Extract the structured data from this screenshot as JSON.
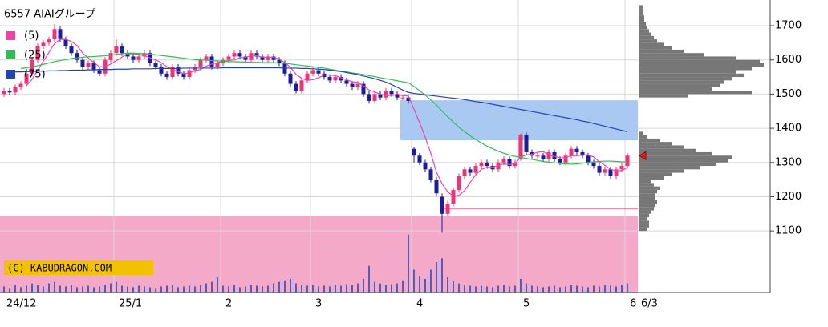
{
  "chart_data": {
    "type": "candlestick",
    "title": "6557 AIAIグループ",
    "watermark": "(C) KABUDRAGON.COM",
    "latest_date": "6/3",
    "categories": [
      "24/12",
      null,
      null,
      null,
      null,
      null,
      null,
      null,
      null,
      null,
      null,
      null,
      null,
      null,
      null,
      null,
      null,
      null,
      null,
      null,
      "25/1",
      null,
      null,
      null,
      null,
      null,
      null,
      null,
      null,
      null,
      null,
      null,
      null,
      null,
      null,
      null,
      null,
      null,
      null,
      "2",
      null,
      null,
      null,
      null,
      null,
      null,
      null,
      null,
      null,
      null,
      null,
      null,
      null,
      null,
      null,
      "3",
      null,
      null,
      null,
      null,
      null,
      null,
      null,
      null,
      null,
      null,
      null,
      null,
      null,
      null,
      null,
      null,
      null,
      "4",
      null,
      null,
      null,
      null,
      null,
      null,
      null,
      null,
      null,
      null,
      null,
      null,
      null,
      null,
      null,
      null,
      null,
      null,
      "5",
      null,
      null,
      null,
      null,
      null,
      null,
      null,
      null,
      null,
      null,
      null,
      null,
      null,
      null,
      null,
      null,
      null,
      null,
      "6"
    ],
    "ohlc": [
      [
        1500,
        1518,
        1492,
        1510
      ],
      [
        1510,
        1518,
        1497,
        1505
      ],
      [
        1505,
        1528,
        1497,
        1520
      ],
      [
        1520,
        1538,
        1512,
        1530
      ],
      [
        1530,
        1568,
        1522,
        1560
      ],
      [
        1560,
        1608,
        1552,
        1600
      ],
      [
        1600,
        1648,
        1592,
        1640
      ],
      [
        1640,
        1658,
        1632,
        1650
      ],
      [
        1650,
        1668,
        1642,
        1660
      ],
      [
        1660,
        1705,
        1652,
        1690
      ],
      [
        1690,
        1698,
        1652,
        1660
      ],
      [
        1660,
        1668,
        1632,
        1640
      ],
      [
        1640,
        1648,
        1612,
        1620
      ],
      [
        1620,
        1628,
        1592,
        1600
      ],
      [
        1600,
        1608,
        1572,
        1580
      ],
      [
        1580,
        1598,
        1572,
        1590
      ],
      [
        1590,
        1598,
        1562,
        1570
      ],
      [
        1570,
        1578,
        1552,
        1560
      ],
      [
        1560,
        1608,
        1552,
        1600
      ],
      [
        1600,
        1628,
        1592,
        1620
      ],
      [
        1620,
        1660,
        1612,
        1640
      ],
      [
        1640,
        1648,
        1612,
        1620
      ],
      [
        1620,
        1628,
        1602,
        1610
      ],
      [
        1610,
        1618,
        1592,
        1600
      ],
      [
        1600,
        1618,
        1592,
        1610
      ],
      [
        1610,
        1628,
        1602,
        1620
      ],
      [
        1620,
        1628,
        1582,
        1590
      ],
      [
        1590,
        1598,
        1572,
        1580
      ],
      [
        1580,
        1588,
        1552,
        1560
      ],
      [
        1560,
        1568,
        1542,
        1550
      ],
      [
        1550,
        1588,
        1542,
        1580
      ],
      [
        1580,
        1588,
        1552,
        1560
      ],
      [
        1560,
        1568,
        1542,
        1550
      ],
      [
        1550,
        1578,
        1542,
        1570
      ],
      [
        1570,
        1588,
        1562,
        1580
      ],
      [
        1580,
        1608,
        1572,
        1600
      ],
      [
        1600,
        1618,
        1592,
        1610
      ],
      [
        1610,
        1618,
        1572,
        1580
      ],
      [
        1580,
        1598,
        1572,
        1590
      ],
      [
        1590,
        1608,
        1582,
        1600
      ],
      [
        1600,
        1618,
        1592,
        1610
      ],
      [
        1610,
        1628,
        1602,
        1620
      ],
      [
        1620,
        1628,
        1602,
        1610
      ],
      [
        1610,
        1618,
        1592,
        1600
      ],
      [
        1600,
        1628,
        1592,
        1620
      ],
      [
        1620,
        1628,
        1602,
        1610
      ],
      [
        1610,
        1618,
        1592,
        1600
      ],
      [
        1600,
        1618,
        1592,
        1610
      ],
      [
        1610,
        1618,
        1592,
        1600
      ],
      [
        1600,
        1608,
        1582,
        1590
      ],
      [
        1590,
        1598,
        1552,
        1560
      ],
      [
        1560,
        1568,
        1522,
        1530
      ],
      [
        1530,
        1538,
        1502,
        1510
      ],
      [
        1510,
        1548,
        1502,
        1540
      ],
      [
        1540,
        1568,
        1532,
        1560
      ],
      [
        1560,
        1578,
        1552,
        1570
      ],
      [
        1570,
        1578,
        1552,
        1560
      ],
      [
        1560,
        1568,
        1542,
        1550
      ],
      [
        1550,
        1558,
        1532,
        1540
      ],
      [
        1540,
        1558,
        1532,
        1550
      ],
      [
        1550,
        1558,
        1532,
        1540
      ],
      [
        1540,
        1548,
        1522,
        1530
      ],
      [
        1530,
        1538,
        1512,
        1520
      ],
      [
        1520,
        1538,
        1512,
        1530
      ],
      [
        1530,
        1538,
        1492,
        1500
      ],
      [
        1500,
        1508,
        1472,
        1480
      ],
      [
        1480,
        1508,
        1472,
        1500
      ],
      [
        1500,
        1508,
        1482,
        1490
      ],
      [
        1490,
        1518,
        1482,
        1510
      ],
      [
        1510,
        1518,
        1492,
        1500
      ],
      [
        1500,
        1508,
        1482,
        1490
      ],
      [
        1490,
        1498,
        1482,
        1490
      ],
      [
        1490,
        1498,
        1472,
        1480
      ],
      [
        1340,
        1345,
        1300,
        1320
      ],
      [
        1320,
        1328,
        1292,
        1300
      ],
      [
        1300,
        1308,
        1272,
        1280
      ],
      [
        1280,
        1288,
        1242,
        1250
      ],
      [
        1250,
        1258,
        1202,
        1210
      ],
      [
        1200,
        1210,
        1095,
        1150
      ],
      [
        1150,
        1188,
        1142,
        1180
      ],
      [
        1180,
        1228,
        1172,
        1220
      ],
      [
        1220,
        1268,
        1212,
        1260
      ],
      [
        1260,
        1288,
        1252,
        1280
      ],
      [
        1280,
        1288,
        1262,
        1270
      ],
      [
        1270,
        1298,
        1262,
        1290
      ],
      [
        1290,
        1308,
        1282,
        1300
      ],
      [
        1300,
        1308,
        1282,
        1290
      ],
      [
        1290,
        1298,
        1272,
        1280
      ],
      [
        1280,
        1308,
        1272,
        1300
      ],
      [
        1300,
        1318,
        1292,
        1310
      ],
      [
        1310,
        1318,
        1282,
        1290
      ],
      [
        1290,
        1308,
        1282,
        1300
      ],
      [
        1310,
        1385,
        1305,
        1380
      ],
      [
        1380,
        1388,
        1322,
        1330
      ],
      [
        1330,
        1338,
        1312,
        1320
      ],
      [
        1320,
        1328,
        1312,
        1320
      ],
      [
        1320,
        1328,
        1302,
        1310
      ],
      [
        1310,
        1338,
        1302,
        1330
      ],
      [
        1330,
        1338,
        1302,
        1310
      ],
      [
        1310,
        1318,
        1292,
        1300
      ],
      [
        1300,
        1328,
        1292,
        1320
      ],
      [
        1320,
        1348,
        1312,
        1340
      ],
      [
        1340,
        1348,
        1322,
        1330
      ],
      [
        1330,
        1338,
        1312,
        1320
      ],
      [
        1320,
        1328,
        1292,
        1300
      ],
      [
        1300,
        1308,
        1282,
        1290
      ],
      [
        1290,
        1298,
        1262,
        1270
      ],
      [
        1270,
        1288,
        1262,
        1280
      ],
      [
        1280,
        1288,
        1252,
        1260
      ],
      [
        1260,
        1288,
        1252,
        1280
      ],
      [
        1280,
        1298,
        1272,
        1290
      ],
      [
        1290,
        1328,
        1282,
        1320
      ]
    ],
    "up_color": "#ee3377",
    "down_color": "#1c1c9c",
    "series": [
      {
        "name": "(5)",
        "color": "#ee44aa",
        "values": [
          null,
          null,
          null,
          null,
          1525,
          1543,
          1570,
          1596,
          1622,
          1648,
          1660,
          1660,
          1654,
          1642,
          1620,
          1606,
          1592,
          1580,
          1580,
          1588,
          1598,
          1608,
          1618,
          1618,
          1616,
          1612,
          1606,
          1600,
          1592,
          1580,
          1572,
          1566,
          1560,
          1562,
          1568,
          1572,
          1582,
          1588,
          1592,
          1596,
          1598,
          1600,
          1606,
          1608,
          1612,
          1612,
          1608,
          1608,
          1608,
          1602,
          1592,
          1578,
          1558,
          1546,
          1540,
          1542,
          1548,
          1556,
          1556,
          1554,
          1548,
          1542,
          1536,
          1534,
          1524,
          1512,
          1506,
          1500,
          1496,
          1496,
          1498,
          1496,
          1494,
          1456,
          1416,
          1374,
          1326,
          1272,
          1238,
          1214,
          1202,
          1204,
          1218,
          1242,
          1264,
          1280,
          1286,
          1286,
          1292,
          1296,
          1294,
          1296,
          1316,
          1322,
          1324,
          1330,
          1332,
          1322,
          1318,
          1314,
          1314,
          1320,
          1320,
          1322,
          1322,
          1316,
          1302,
          1292,
          1280,
          1276,
          1276,
          1286
        ]
      },
      {
        "name": "(25)",
        "color": "#33bb55",
        "values": [
          null,
          null,
          null,
          1575,
          1577,
          1580,
          1583,
          1587,
          1591,
          1595,
          1598,
          1601,
          1604,
          1606,
          1608,
          1609,
          1610,
          1611,
          1612,
          1614,
          1616,
          1618,
          1620,
          1620,
          1619,
          1618,
          1617,
          1615,
          1613,
          1611,
          1609,
          1607,
          1605,
          1603,
          1601,
          1600,
          1599,
          1598,
          1597,
          1596,
          1595,
          1595,
          1594,
          1594,
          1593,
          1593,
          1592,
          1592,
          1592,
          1591,
          1590,
          1588,
          1586,
          1584,
          1582,
          1580,
          1578,
          1576,
          1573,
          1570,
          1567,
          1565,
          1562,
          1560,
          1557,
          1554,
          1551,
          1548,
          1545,
          1542,
          1539,
          1536,
          1533,
          1522,
          1510,
          1497,
          1483,
          1468,
          1450,
          1434,
          1418,
          1403,
          1390,
          1378,
          1367,
          1357,
          1348,
          1340,
          1333,
          1327,
          1322,
          1318,
          1315,
          1312,
          1309,
          1306,
          1303,
          1301,
          1299,
          1297,
          1296,
          1295,
          1296,
          1298,
          1300,
          1302,
          1303,
          1304,
          1304,
          1303,
          1302,
          1302
        ]
      },
      {
        "name": "(75)",
        "color": "#2244bb",
        "values": [
          null,
          null,
          1565,
          1565,
          1566,
          1566,
          1567,
          1567,
          1568,
          1568,
          1569,
          1569,
          1570,
          1570,
          1570,
          1571,
          1571,
          1572,
          1572,
          1572,
          1573,
          1573,
          1573,
          1574,
          1574,
          1574,
          1574,
          1575,
          1575,
          1575,
          1575,
          1575,
          1576,
          1576,
          1576,
          1576,
          1576,
          1576,
          1576,
          1577,
          1577,
          1577,
          1577,
          1577,
          1577,
          1577,
          1577,
          1577,
          1577,
          1577,
          1576,
          1576,
          1576,
          1575,
          1575,
          1574,
          1573,
          1572,
          1570,
          1568,
          1566,
          1563,
          1560,
          1557,
          1553,
          1549,
          1545,
          1540,
          1535,
          1528,
          1520,
          1512,
          1505,
          1502,
          1500,
          1498,
          1496,
          1494,
          1492,
          1490,
          1488,
          1486,
          1484,
          1481,
          1478,
          1476,
          1473,
          1470,
          1467,
          1464,
          1461,
          1458,
          1455,
          1452,
          1449,
          1446,
          1443,
          1440,
          1437,
          1434,
          1431,
          1428,
          1425,
          1421,
          1418,
          1414,
          1410,
          1406,
          1402,
          1398,
          1394,
          1390
        ]
      }
    ],
    "volume": {
      "color": "#4a5fc0",
      "lim": [
        0,
        100
      ],
      "values": [
        8,
        6,
        10,
        7,
        9,
        12,
        10,
        8,
        12,
        14,
        9,
        8,
        10,
        7,
        8,
        9,
        7,
        8,
        10,
        12,
        14,
        9,
        8,
        7,
        9,
        8,
        7,
        6,
        8,
        9,
        10,
        7,
        8,
        9,
        8,
        10,
        12,
        14,
        20,
        9,
        8,
        10,
        7,
        8,
        10,
        9,
        8,
        9,
        12,
        14,
        16,
        18,
        12,
        10,
        9,
        10,
        8,
        9,
        8,
        10,
        9,
        11,
        10,
        12,
        18,
        35,
        14,
        12,
        10,
        11,
        12,
        16,
        76,
        30,
        22,
        18,
        30,
        40,
        45,
        20,
        15,
        12,
        10,
        9,
        8,
        9,
        8,
        7,
        9,
        10,
        8,
        9,
        18,
        12,
        9,
        8,
        7,
        8,
        9,
        7,
        8,
        10,
        9,
        8,
        7,
        9,
        8,
        10,
        9,
        8,
        10,
        12
      ]
    },
    "ylim": [
      920,
      1775
    ],
    "yticks": [
      1100,
      1200,
      1300,
      1400,
      1500,
      1600,
      1700
    ],
    "grid": true,
    "gap_zone": {
      "low": 1365,
      "high": 1482,
      "start": 71,
      "color": "#a9c9f2"
    },
    "support_line": {
      "value": 1165,
      "start": 78,
      "color": "#f08aa8"
    },
    "profile": {
      "low": 1100,
      "step": 10,
      "color": "#777777",
      "lim": [
        0,
        160
      ],
      "values": [
        10,
        12,
        12,
        10,
        12,
        15,
        18,
        20,
        22,
        20,
        20,
        22,
        25,
        18,
        15,
        30,
        40,
        55,
        75,
        95,
        110,
        115,
        90,
        70,
        55,
        40,
        25,
        10,
        5,
        0,
        0,
        0,
        0,
        0,
        0,
        0,
        0,
        0,
        0,
        60,
        140,
        90,
        100,
        105,
        115,
        130,
        120,
        140,
        155,
        150,
        120,
        80,
        55,
        40,
        30,
        22,
        18,
        15,
        12,
        10,
        8,
        6,
        6,
        5,
        4,
        4,
        0
      ]
    }
  }
}
